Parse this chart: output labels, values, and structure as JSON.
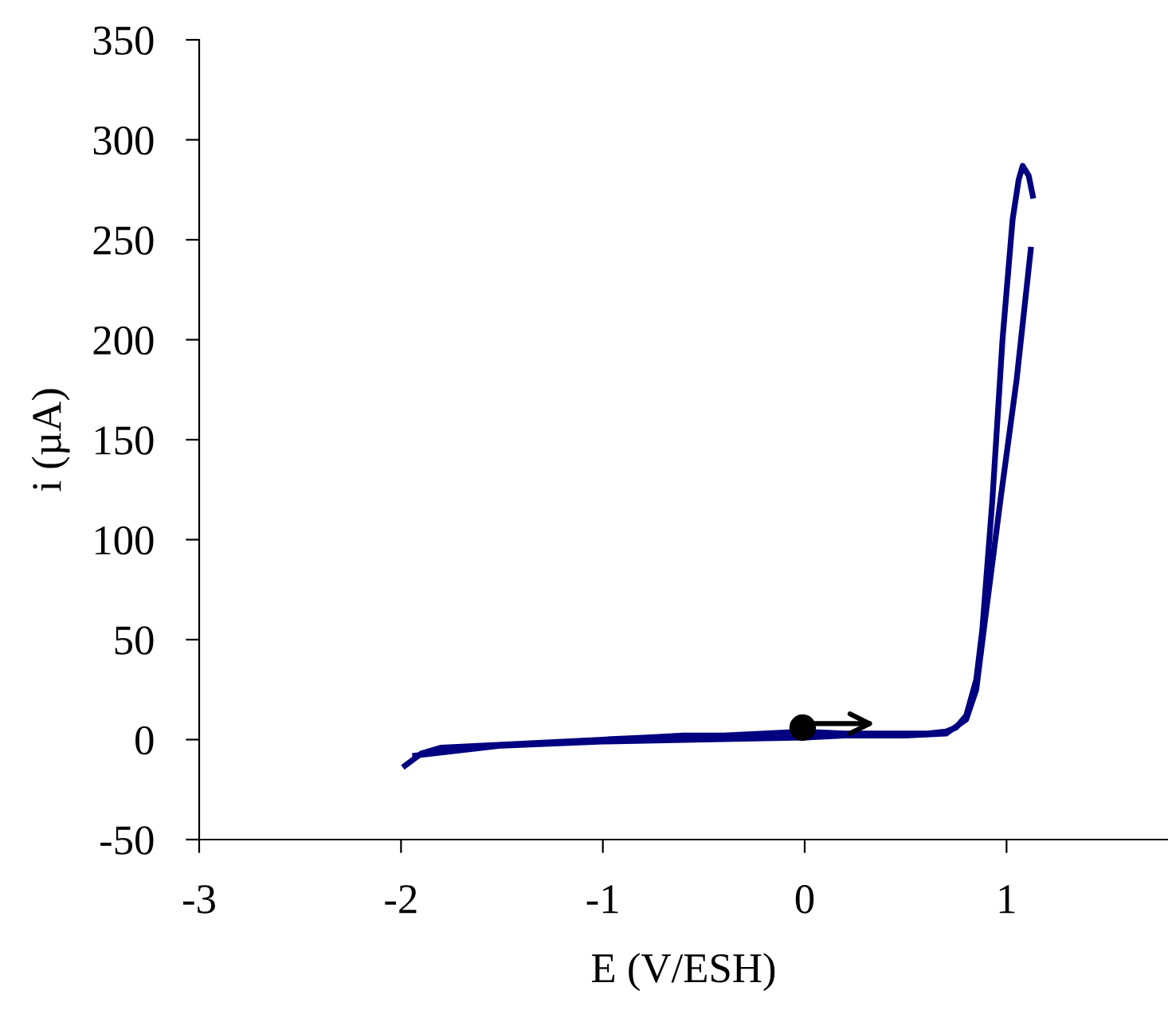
{
  "chart_data": {
    "type": "line",
    "xlabel": "E (V/ESH)",
    "ylabel": "i (µA)",
    "xlim": [
      -3,
      1.8
    ],
    "xticks": [
      -3,
      -2,
      -1,
      0,
      1
    ],
    "ylim": [
      -50,
      350
    ],
    "yticks": [
      -50,
      0,
      50,
      100,
      150,
      200,
      250,
      300,
      350
    ],
    "grid": false,
    "legend": false,
    "marker": "none",
    "line_style": "solid",
    "series": [
      {
        "type": "line",
        "color": "#000080",
        "x": [
          -1.98,
          -1.9,
          -1.8,
          -1.6,
          -1.4,
          -1.2,
          -1.0,
          -0.8,
          -0.6,
          -0.4,
          -0.2,
          0,
          0.2,
          0.4,
          0.6,
          0.7,
          0.75,
          0.8,
          0.85,
          0.88,
          0.93,
          0.98,
          1.03,
          1.06,
          1.08,
          1.11,
          1.13
        ],
        "values": [
          -13,
          -7,
          -4,
          -3,
          -2,
          -1,
          0,
          1,
          2,
          2,
          3,
          4,
          3,
          3,
          3,
          4,
          6,
          12,
          30,
          55,
          120,
          200,
          260,
          280,
          287,
          282,
          272
        ]
      },
      {
        "type": "line",
        "color": "#000080",
        "x": [
          -1.93,
          -1.5,
          -1.0,
          -0.5,
          0,
          0.2,
          0.5,
          0.7,
          0.8,
          0.85,
          0.9,
          0.97,
          1.05,
          1.12
        ],
        "values": [
          -8,
          -3,
          -1,
          0,
          1,
          2,
          2,
          3,
          10,
          25,
          65,
          120,
          180,
          245
        ]
      },
      {
        "type": "scatter",
        "color": "#000000",
        "marker": "circle",
        "x": [
          -0.01
        ],
        "values": [
          6
        ]
      }
    ]
  }
}
